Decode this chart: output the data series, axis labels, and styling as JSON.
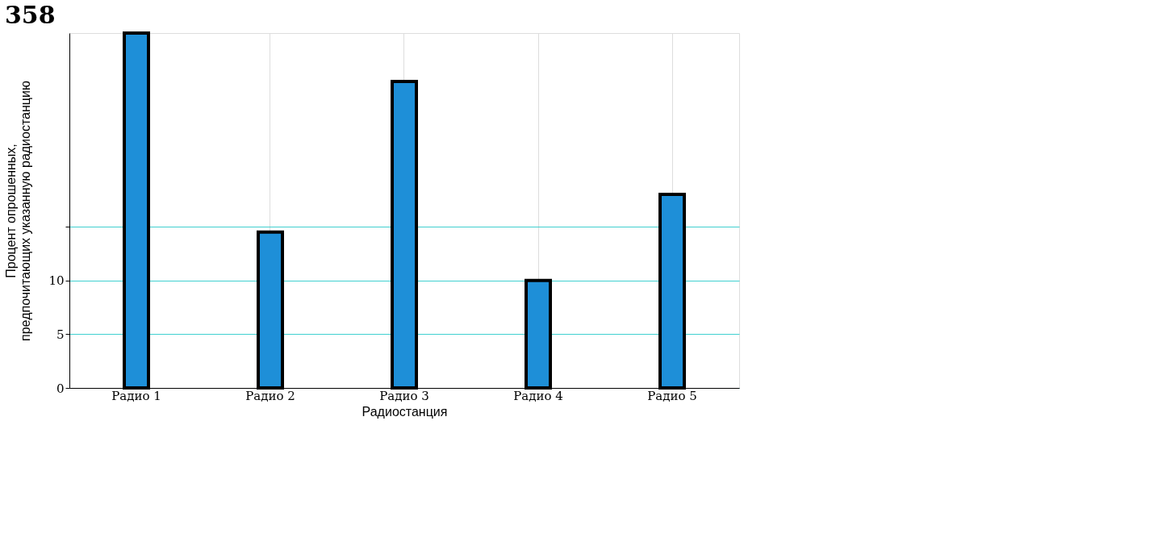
{
  "chart_data": {
    "type": "bar",
    "title": "358",
    "xlabel": "Радиостанция",
    "ylabel": "Процент опрошенных, предпочитающих указанную радиостанцию",
    "categories": [
      "Радио 1",
      "Радио 2",
      "Радио 3",
      "Радио 4",
      "Радио 5"
    ],
    "values": [
      33,
      14.5,
      28.5,
      10,
      18
    ],
    "color": "#1e8fd8",
    "ylim": [
      0,
      33
    ],
    "yticks": [
      0,
      5,
      10,
      {
        "value": 15,
        "label": null
      }
    ],
    "grid": true
  }
}
